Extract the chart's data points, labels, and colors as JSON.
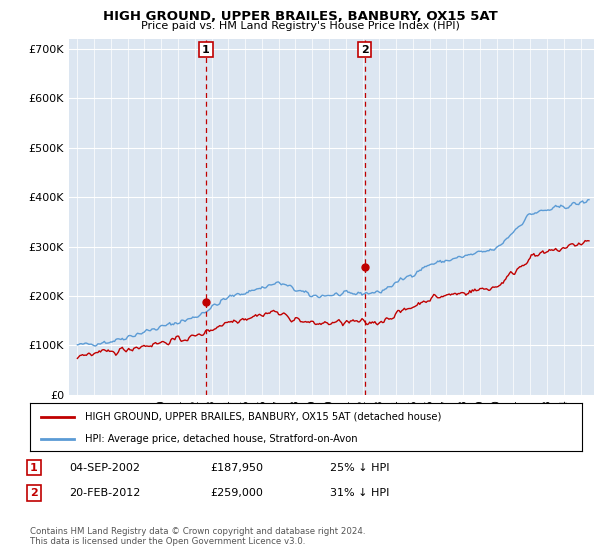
{
  "title": "HIGH GROUND, UPPER BRAILES, BANBURY, OX15 5AT",
  "subtitle": "Price paid vs. HM Land Registry's House Price Index (HPI)",
  "legend_line1": "HIGH GROUND, UPPER BRAILES, BANBURY, OX15 5AT (detached house)",
  "legend_line2": "HPI: Average price, detached house, Stratford-on-Avon",
  "ann1_num": "1",
  "ann1_date": "04-SEP-2002",
  "ann1_price": "£187,950",
  "ann1_pct": "25% ↓ HPI",
  "ann2_num": "2",
  "ann2_date": "20-FEB-2012",
  "ann2_price": "£259,000",
  "ann2_pct": "31% ↓ HPI",
  "footer": "Contains HM Land Registry data © Crown copyright and database right 2024.\nThis data is licensed under the Open Government Licence v3.0.",
  "hpi_color": "#5b9bd5",
  "price_color": "#c00000",
  "vline_color": "#c00000",
  "background_color": "#dce6f1",
  "ylim": [
    0,
    720000
  ],
  "yticks": [
    0,
    100000,
    200000,
    300000,
    400000,
    500000,
    600000,
    700000
  ],
  "ytick_labels": [
    "£0",
    "£100K",
    "£200K",
    "£300K",
    "£400K",
    "£500K",
    "£600K",
    "£700K"
  ],
  "sale1_x": 2002.67,
  "sale1_y": 187950,
  "sale2_x": 2012.12,
  "sale2_y": 259000,
  "xlim_left": 1994.5,
  "xlim_right": 2025.8
}
